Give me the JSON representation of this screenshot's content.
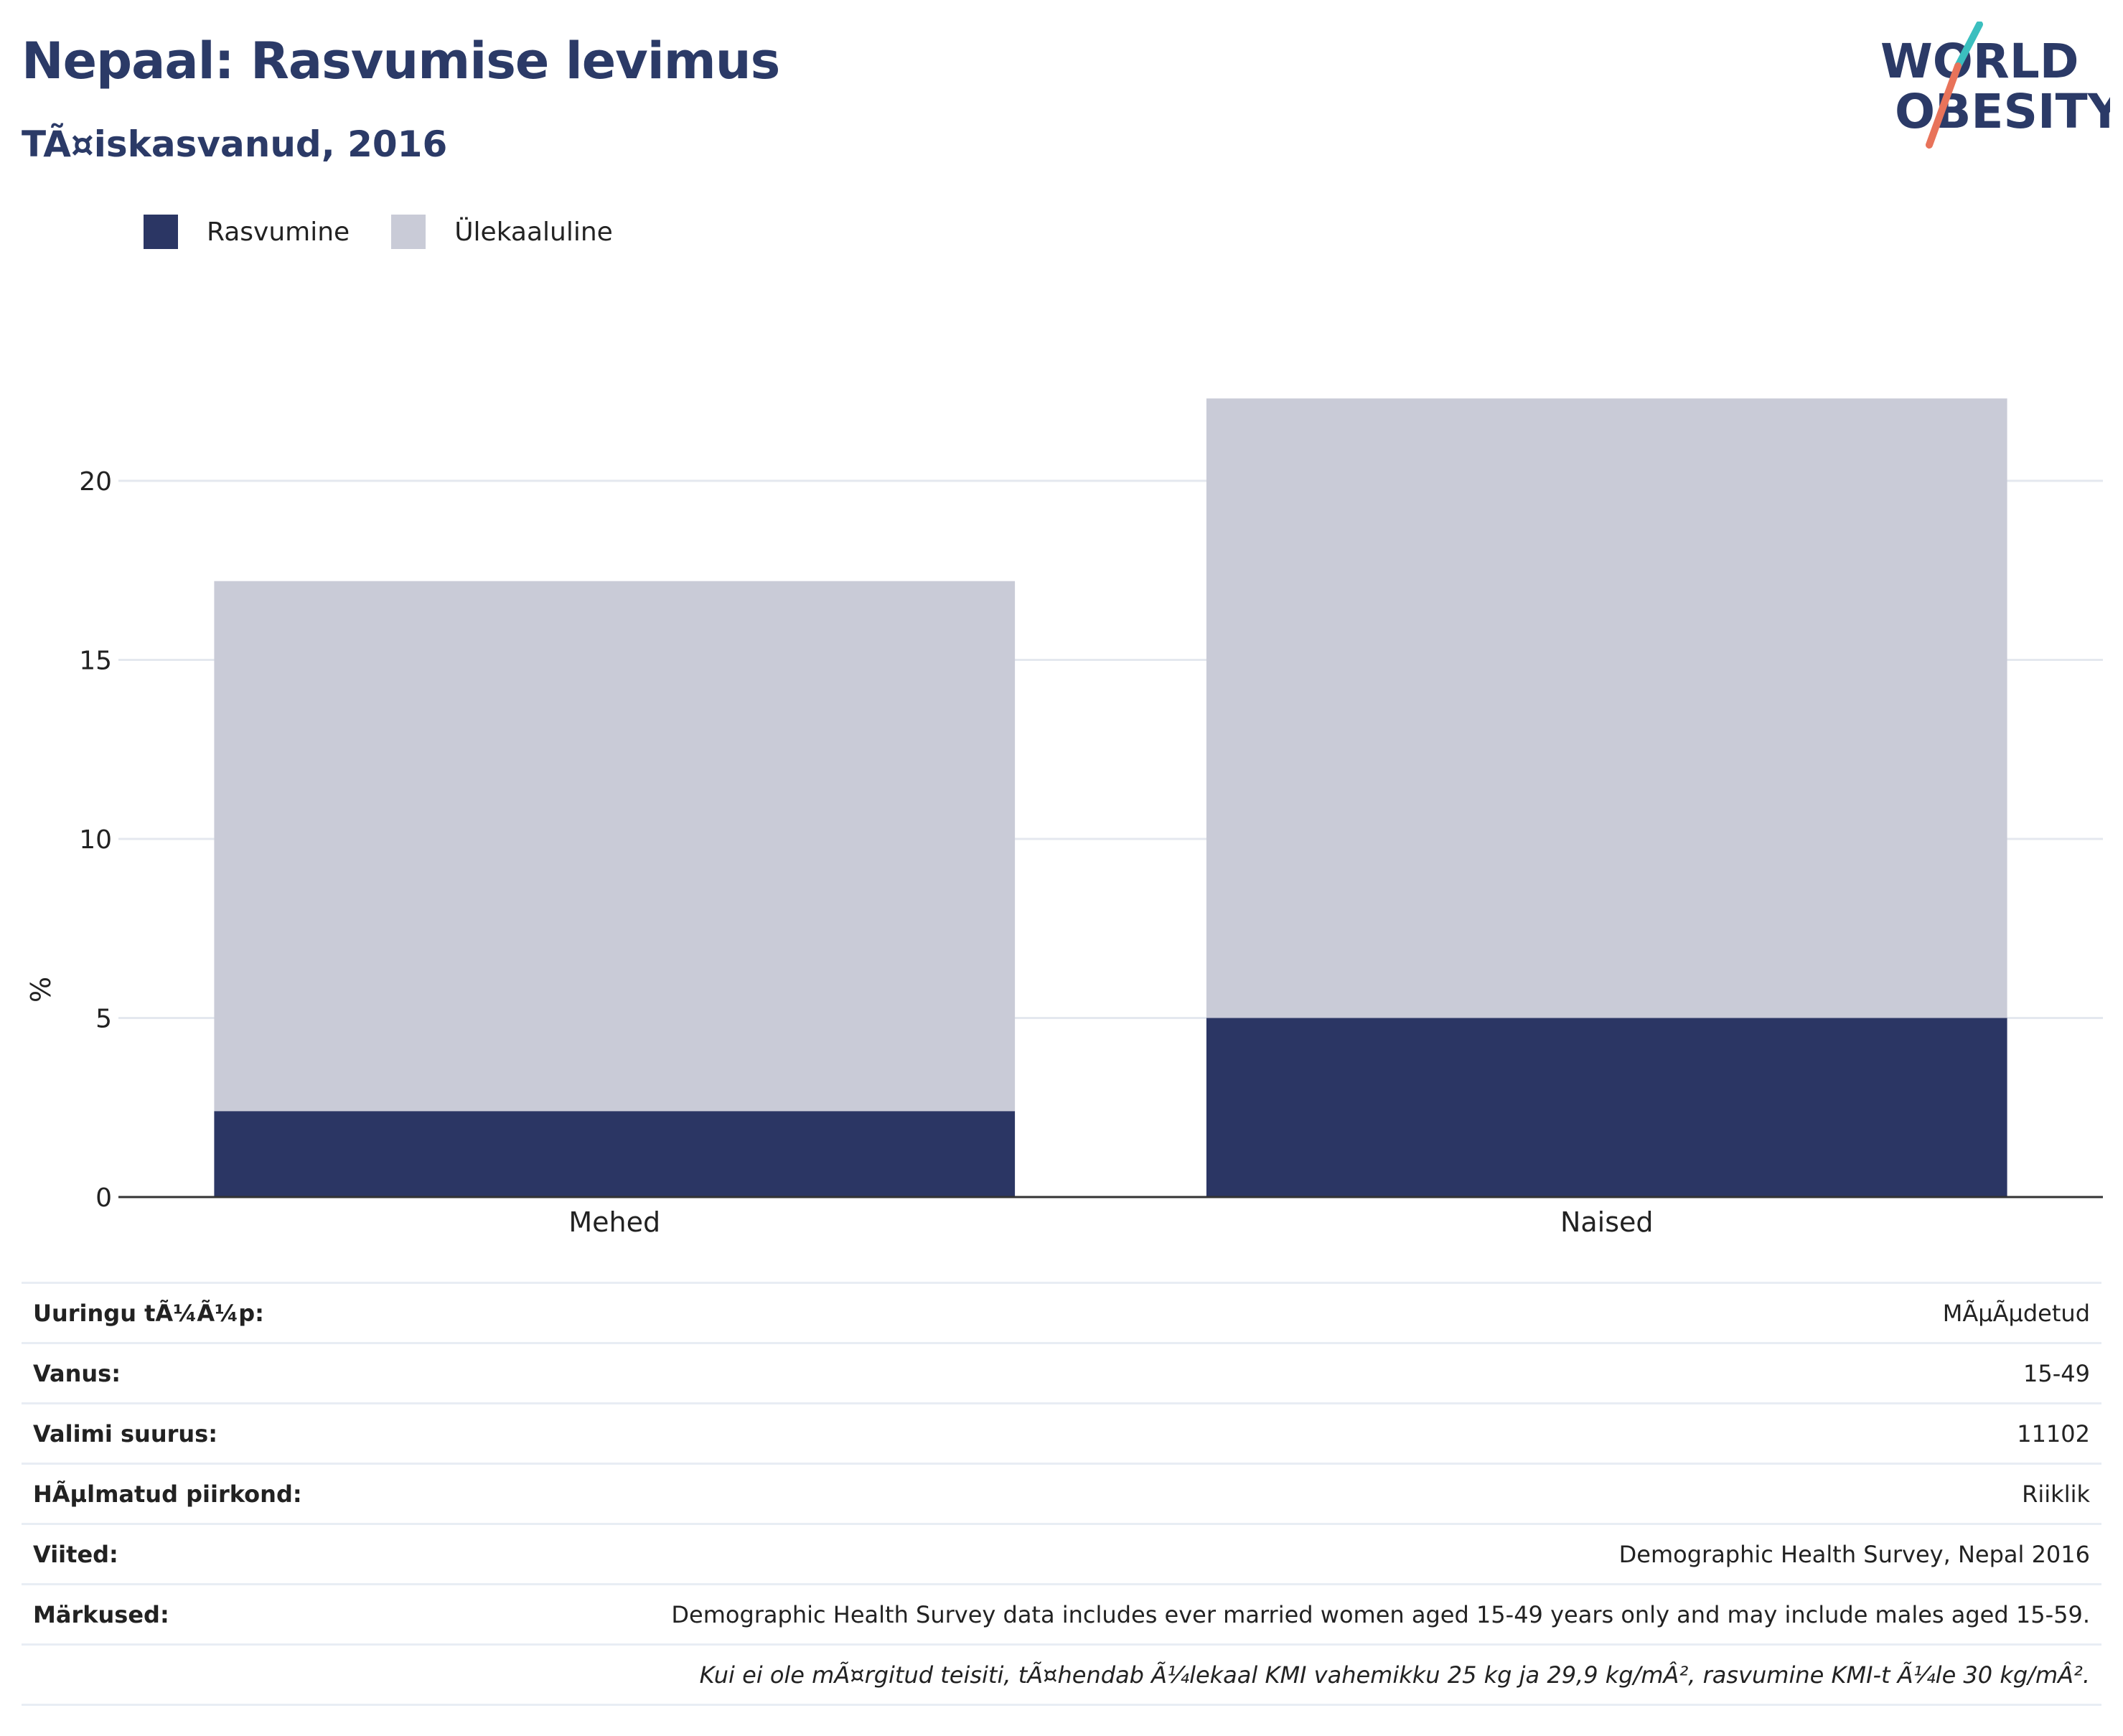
{
  "header": {
    "title": "Nepaal: Rasvumise levimus",
    "subtitle": "TÃ¤iskasvanud, 2016"
  },
  "logo": {
    "line1": "WORLD",
    "line2": "OBESITY"
  },
  "colors": {
    "obesity": "#2b3664",
    "overweight": "#c9cbd7",
    "title": "#2b3a67",
    "logo_teal": "#3bbfbf",
    "logo_coral": "#e8735a"
  },
  "chart_data": {
    "type": "bar",
    "stacked": true,
    "categories": [
      "Mehed",
      "Naised"
    ],
    "series": [
      {
        "name": "Rasvumine",
        "values": [
          2.4,
          5.0
        ]
      },
      {
        "name": "Ülekaaluline",
        "values": [
          14.8,
          17.3
        ]
      }
    ],
    "ylabel": "%",
    "xlabel": "",
    "ylim": [
      0,
      25
    ],
    "yticks": [
      0,
      5,
      10,
      15,
      20
    ],
    "grid": true,
    "legend_position": "top-left"
  },
  "info": {
    "rows": [
      {
        "key": "Uuringu tÃ¼Ã¼p:",
        "value": "MÃµÃµdetud"
      },
      {
        "key": "Vanus:",
        "value": "15-49"
      },
      {
        "key": "Valimi suurus:",
        "value": "11102"
      },
      {
        "key": "HÃµlmatud piirkond:",
        "value": "Riiklik"
      },
      {
        "key": "Viited:",
        "value": "Demographic Health Survey, Nepal 2016"
      },
      {
        "key": "Märkused:",
        "value": "Demographic Health Survey data includes ever married women aged 15-49 years only and may include males aged 15-59."
      }
    ],
    "note": "Kui ei ole mÃ¤rgitud teisiti, tÃ¤hendab Ã¼lekaal KMI vahemikku 25 kg ja 29,9 kg/mÂ², rasvumine KMI-t Ã¼le 30 kg/mÂ²."
  }
}
